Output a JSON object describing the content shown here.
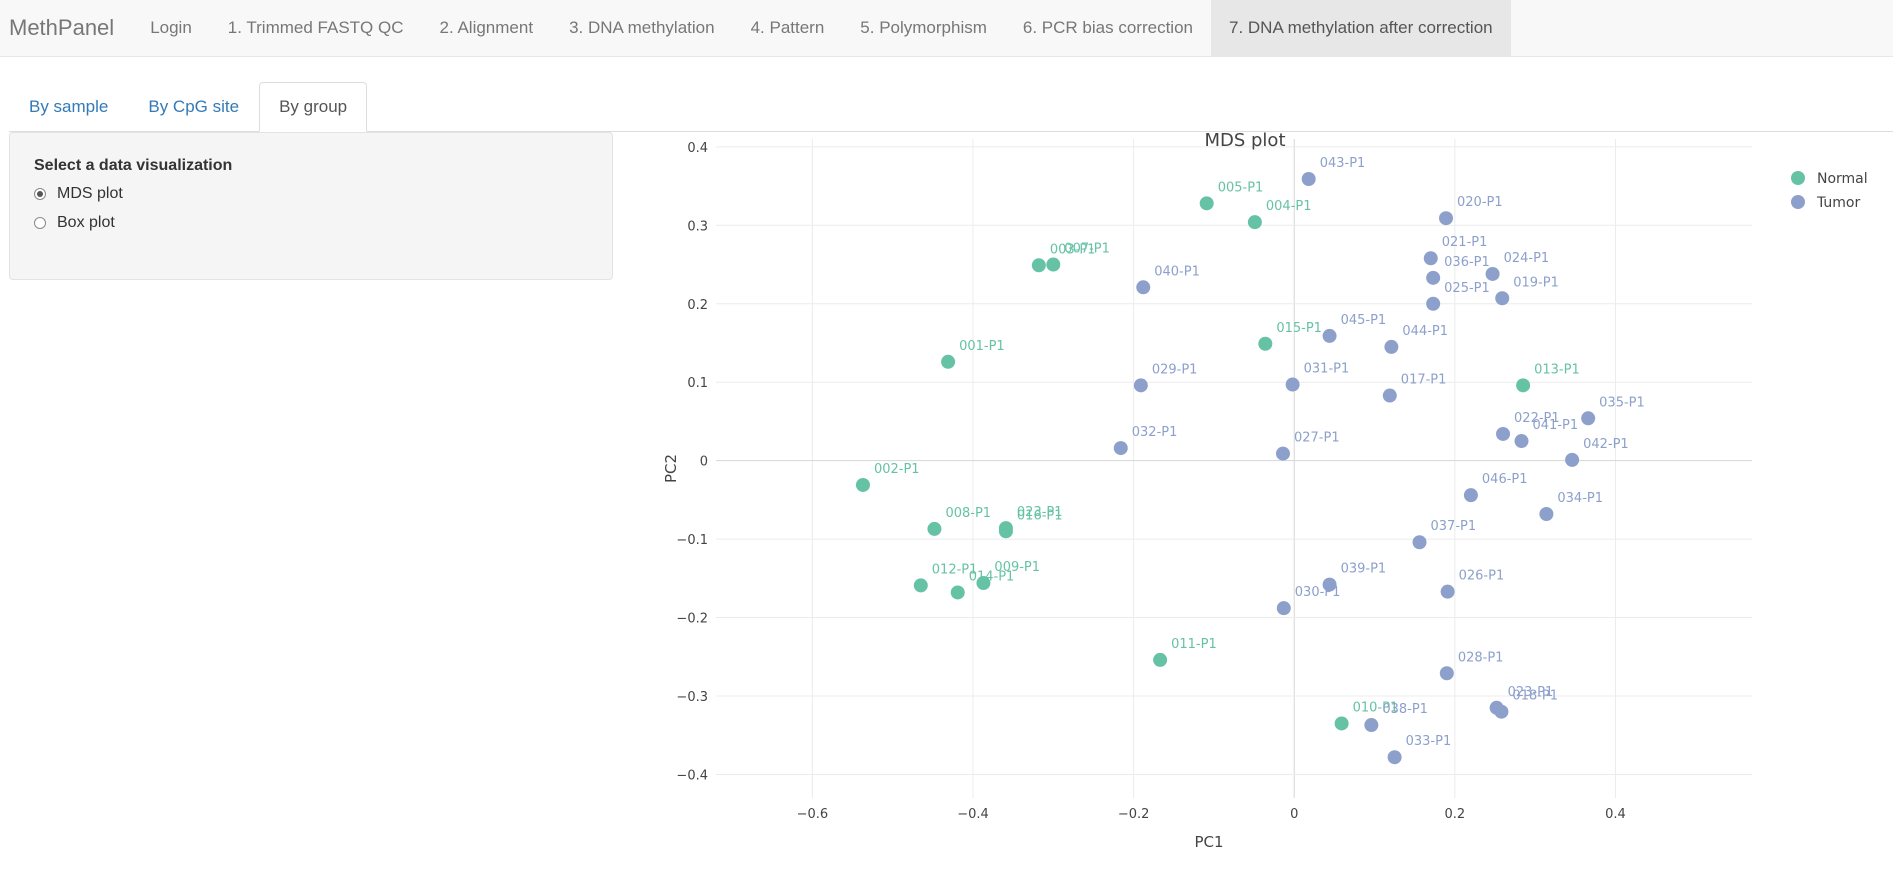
{
  "navbar": {
    "brand": "MethPanel",
    "items": [
      {
        "label": "Login",
        "active": false
      },
      {
        "label": "1. Trimmed FASTQ QC",
        "active": false
      },
      {
        "label": "2. Alignment",
        "active": false
      },
      {
        "label": "3. DNA methylation",
        "active": false
      },
      {
        "label": "4. Pattern",
        "active": false
      },
      {
        "label": "5. Polymorphism",
        "active": false
      },
      {
        "label": "6. PCR bias correction",
        "active": false
      },
      {
        "label": "7. DNA methylation after correction",
        "active": true
      }
    ]
  },
  "tabs": [
    {
      "label": "By sample",
      "active": false
    },
    {
      "label": "By CpG site",
      "active": false
    },
    {
      "label": "By group",
      "active": true
    }
  ],
  "sidebar": {
    "title": "Select a data visualization",
    "options": [
      {
        "label": "MDS plot",
        "checked": true
      },
      {
        "label": "Box plot",
        "checked": false
      }
    ]
  },
  "colors": {
    "normal": "#66c2a5",
    "tumor": "#8da0cb"
  },
  "chart_data": {
    "type": "scatter",
    "title": "MDS plot",
    "xlabel": "PC1",
    "ylabel": "PC2",
    "xlim": [
      -0.72,
      0.57
    ],
    "ylim": [
      -0.43,
      0.41
    ],
    "xticks": [
      -0.6,
      -0.4,
      -0.2,
      0,
      0.2,
      0.4
    ],
    "xtick_labels": [
      "−0.6",
      "−0.4",
      "−0.2",
      "0",
      "0.2",
      "0.4"
    ],
    "yticks": [
      0.4,
      0.3,
      0.2,
      0.1,
      0,
      -0.1,
      -0.2,
      -0.3,
      -0.4
    ],
    "ytick_labels": [
      "0.4",
      "0.3",
      "0.2",
      "0.1",
      "0",
      "−0.1",
      "−0.2",
      "−0.3",
      "−0.4"
    ],
    "grid": true,
    "legend": "top-right",
    "series": [
      {
        "name": "Normal",
        "points": [
          {
            "label": "005-P1",
            "x": -0.109,
            "y": 0.328
          },
          {
            "label": "004-P1",
            "x": -0.049,
            "y": 0.304
          },
          {
            "label": "003-P1",
            "x": -0.318,
            "y": 0.249
          },
          {
            "label": "007-P1",
            "x": -0.3,
            "y": 0.25
          },
          {
            "label": "001-P1",
            "x": -0.431,
            "y": 0.126
          },
          {
            "label": "015-P1",
            "x": -0.036,
            "y": 0.149
          },
          {
            "label": "013-P1",
            "x": 0.285,
            "y": 0.096
          },
          {
            "label": "002-P1",
            "x": -0.537,
            "y": -0.031
          },
          {
            "label": "008-P1",
            "x": -0.448,
            "y": -0.087
          },
          {
            "label": "023-P1",
            "x": -0.359,
            "y": -0.086
          },
          {
            "label": "016-P1",
            "x": -0.359,
            "y": -0.09
          },
          {
            "label": "012-P1",
            "x": -0.465,
            "y": -0.159
          },
          {
            "label": "014-P1",
            "x": -0.419,
            "y": -0.168
          },
          {
            "label": "009-P1",
            "x": -0.387,
            "y": -0.156
          },
          {
            "label": "011-P1",
            "x": -0.167,
            "y": -0.254
          },
          {
            "label": "010-P1",
            "x": 0.059,
            "y": -0.335
          }
        ]
      },
      {
        "name": "Tumor",
        "points": [
          {
            "label": "043-P1",
            "x": 0.018,
            "y": 0.359
          },
          {
            "label": "020-P1",
            "x": 0.189,
            "y": 0.309
          },
          {
            "label": "021-P1",
            "x": 0.17,
            "y": 0.258
          },
          {
            "label": "036-P1",
            "x": 0.173,
            "y": 0.233
          },
          {
            "label": "024-P1",
            "x": 0.247,
            "y": 0.238
          },
          {
            "label": "019-P1",
            "x": 0.259,
            "y": 0.207
          },
          {
            "label": "025-P1",
            "x": 0.173,
            "y": 0.2
          },
          {
            "label": "040-P1",
            "x": -0.188,
            "y": 0.221
          },
          {
            "label": "045-P1",
            "x": 0.044,
            "y": 0.159
          },
          {
            "label": "044-P1",
            "x": 0.121,
            "y": 0.145
          },
          {
            "label": "029-P1",
            "x": -0.191,
            "y": 0.096
          },
          {
            "label": "031-P1",
            "x": -0.002,
            "y": 0.097
          },
          {
            "label": "017-P1",
            "x": 0.119,
            "y": 0.083
          },
          {
            "label": "035-P1",
            "x": 0.366,
            "y": 0.054
          },
          {
            "label": "022-P1",
            "x": 0.26,
            "y": 0.034
          },
          {
            "label": "041-P1",
            "x": 0.283,
            "y": 0.025
          },
          {
            "label": "042-P1",
            "x": 0.346,
            "y": 0.001
          },
          {
            "label": "032-P1",
            "x": -0.216,
            "y": 0.016
          },
          {
            "label": "027-P1",
            "x": -0.014,
            "y": 0.009
          },
          {
            "label": "046-P1",
            "x": 0.22,
            "y": -0.044
          },
          {
            "label": "034-P1",
            "x": 0.314,
            "y": -0.068
          },
          {
            "label": "037-P1",
            "x": 0.156,
            "y": -0.104
          },
          {
            "label": "039-P1",
            "x": 0.044,
            "y": -0.158
          },
          {
            "label": "026-P1",
            "x": 0.191,
            "y": -0.167
          },
          {
            "label": "030-P1",
            "x": -0.013,
            "y": -0.188
          },
          {
            "label": "028-P1",
            "x": 0.19,
            "y": -0.271
          },
          {
            "label": "023-P1",
            "x": 0.252,
            "y": -0.315
          },
          {
            "label": "018-P1",
            "x": 0.258,
            "y": -0.32
          },
          {
            "label": "038-P1",
            "x": 0.096,
            "y": -0.337
          },
          {
            "label": "033-P1",
            "x": 0.125,
            "y": -0.378
          }
        ]
      }
    ]
  }
}
